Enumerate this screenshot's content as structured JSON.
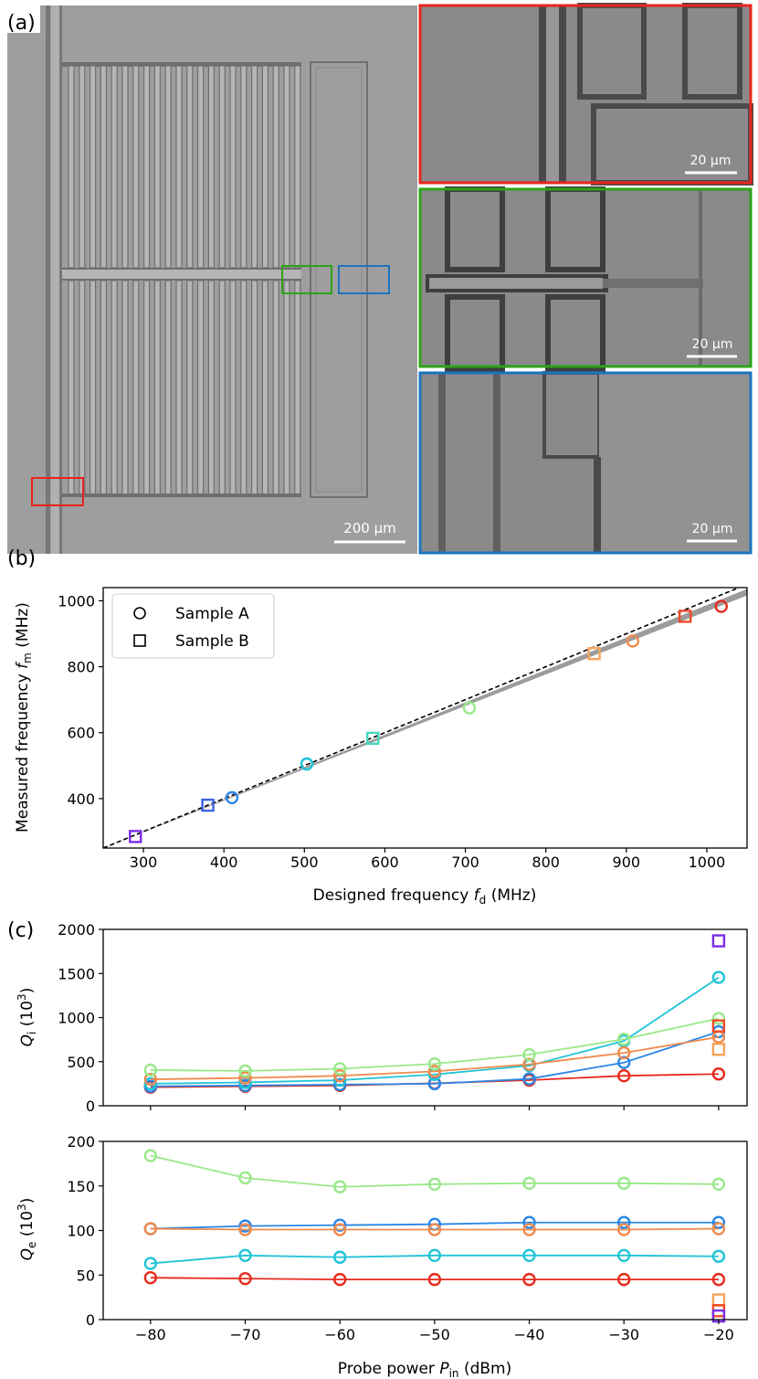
{
  "panel_labels": {
    "a": "(a)",
    "b": "(b)",
    "c": "(c)"
  },
  "micrographs": {
    "scale_bar_main": "200 µm",
    "insets": [
      {
        "name": "red-inset",
        "color": "#e8241c",
        "scale_bar": "20 µm"
      },
      {
        "name": "green-inset",
        "color": "#2ca416",
        "scale_bar": "20 µm"
      },
      {
        "name": "blue-inset",
        "color": "#1b74bf",
        "scale_bar": "20 µm"
      }
    ]
  },
  "chart_data": [
    {
      "id": "b",
      "type": "scatter",
      "xlabel": "Designed frequency f_d (MHz)",
      "xlabel_main": "Designed frequency ",
      "xlabel_sym": "f",
      "xlabel_sub": "d",
      "xlabel_unit": " (MHz)",
      "ylabel_main": "Measured frequency ",
      "ylabel_sym": "f",
      "ylabel_sub": "m",
      "ylabel_unit": " (MHz)",
      "xlim": [
        250,
        1050
      ],
      "ylim": [
        250,
        1040
      ],
      "xticks": [
        300,
        400,
        500,
        600,
        700,
        800,
        900,
        1000
      ],
      "yticks": [
        400,
        600,
        800,
        1000
      ],
      "legend": [
        {
          "marker": "circle",
          "label": "Sample A"
        },
        {
          "marker": "square",
          "label": "Sample B"
        }
      ],
      "legend_position": "top-left",
      "reference_line": {
        "style": "dashed",
        "y_equals_x": true
      },
      "band": {
        "x": [
          250,
          1050
        ],
        "lower": [
          250,
          1016
        ],
        "upper": [
          250,
          1036
        ]
      },
      "points": [
        {
          "sample": "B",
          "x": 290,
          "y": 285,
          "color": "#7b2ce6"
        },
        {
          "sample": "B",
          "x": 380,
          "y": 380,
          "color": "#3b62e0"
        },
        {
          "sample": "A",
          "x": 410,
          "y": 403,
          "color": "#2a86e6"
        },
        {
          "sample": "A",
          "x": 503,
          "y": 505,
          "color": "#1fc4d6"
        },
        {
          "sample": "B",
          "x": 585,
          "y": 583,
          "color": "#45d9c0"
        },
        {
          "sample": "A",
          "x": 705,
          "y": 675,
          "color": "#9ae88a"
        },
        {
          "sample": "B",
          "x": 860,
          "y": 840,
          "color": "#f5a35a"
        },
        {
          "sample": "A",
          "x": 908,
          "y": 878,
          "color": "#f08a4e"
        },
        {
          "sample": "B",
          "x": 973,
          "y": 953,
          "color": "#f04a28"
        },
        {
          "sample": "A",
          "x": 1018,
          "y": 983,
          "color": "#e62b1e"
        }
      ]
    },
    {
      "id": "c-top",
      "type": "line",
      "ylabel_sym": "Q",
      "ylabel_sub": "i",
      "ylabel_unit": " (10",
      "ylabel_sup": "3",
      "ylabel_close": ")",
      "xlim": [
        -85,
        -17
      ],
      "ylim": [
        0,
        2000
      ],
      "yticks": [
        0,
        500,
        1000,
        1500,
        2000
      ],
      "x": [
        -80,
        -70,
        -60,
        -50,
        -40,
        -30,
        -20
      ],
      "series": [
        {
          "name": "red",
          "color": "#e62b1e",
          "values": [
            210,
            220,
            230,
            255,
            290,
            340,
            360
          ]
        },
        {
          "name": "blue",
          "color": "#2a86e6",
          "values": [
            220,
            230,
            240,
            250,
            305,
            490,
            840
          ]
        },
        {
          "name": "cyan",
          "color": "#1fc4d6",
          "values": [
            250,
            265,
            290,
            355,
            455,
            735,
            1455
          ]
        },
        {
          "name": "orange",
          "color": "#f08a4e",
          "values": [
            300,
            315,
            340,
            390,
            470,
            600,
            780
          ]
        },
        {
          "name": "light-green",
          "color": "#9ae88a",
          "values": [
            405,
            395,
            420,
            475,
            580,
            755,
            990
          ]
        }
      ],
      "points_b": [
        {
          "x": -20,
          "y": 1870,
          "color": "#7b2ce6"
        },
        {
          "x": -20,
          "y": 640,
          "color": "#f5a35a"
        },
        {
          "x": -20,
          "y": 905,
          "color": "#f04a28"
        }
      ]
    },
    {
      "id": "c-bottom",
      "type": "line",
      "ylabel_sym": "Q",
      "ylabel_sub": "e",
      "ylabel_unit": " (10",
      "ylabel_sup": "3",
      "ylabel_close": ")",
      "xlabel_main": "Probe power ",
      "xlabel_sym": "P",
      "xlabel_sub": "in",
      "xlabel_unit": " (dBm)",
      "xlim": [
        -85,
        -17
      ],
      "ylim": [
        0,
        200
      ],
      "xticks": [
        -80,
        -70,
        -60,
        -50,
        -40,
        -30,
        -20
      ],
      "xtick_labels": [
        "−80",
        "−70",
        "−60",
        "−50",
        "−40",
        "−30",
        "−20"
      ],
      "yticks": [
        0,
        50,
        100,
        150,
        200
      ],
      "x": [
        -80,
        -70,
        -60,
        -50,
        -40,
        -30,
        -20
      ],
      "series": [
        {
          "name": "light-green",
          "color": "#9ae88a",
          "values": [
            184,
            159,
            149,
            152,
            153,
            153,
            152
          ]
        },
        {
          "name": "blue",
          "color": "#2a86e6",
          "values": [
            102,
            105,
            106,
            107,
            109,
            109,
            109
          ]
        },
        {
          "name": "orange",
          "color": "#f08a4e",
          "values": [
            102,
            101,
            101,
            101,
            101,
            101,
            102
          ]
        },
        {
          "name": "cyan",
          "color": "#1fc4d6",
          "values": [
            63,
            72,
            70,
            72,
            72,
            72,
            71
          ]
        },
        {
          "name": "red",
          "color": "#e62b1e",
          "values": [
            47,
            46,
            45,
            45,
            45,
            45,
            45
          ]
        }
      ],
      "points_b": [
        {
          "x": -20,
          "y": 22,
          "color": "#f5a35a"
        },
        {
          "x": -20,
          "y": 10,
          "color": "#f04a28"
        },
        {
          "x": -20,
          "y": 4,
          "color": "#7b2ce6"
        }
      ]
    }
  ]
}
